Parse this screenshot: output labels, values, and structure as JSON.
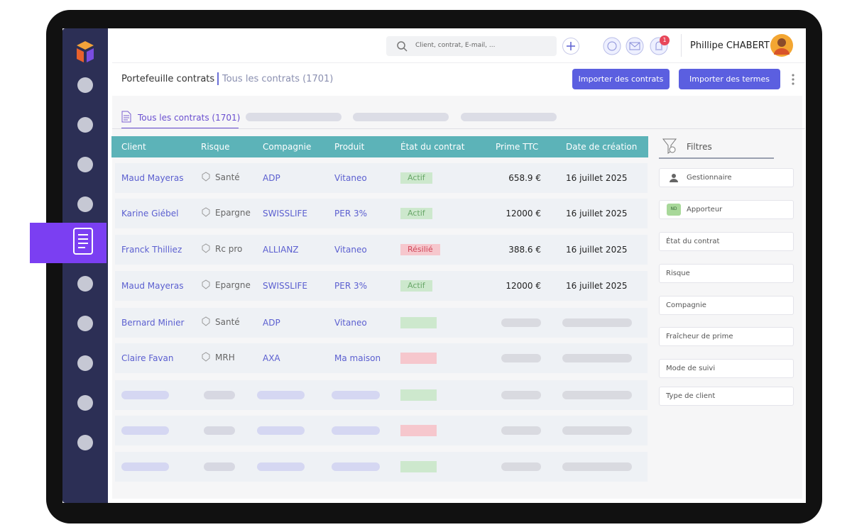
{
  "topbar": {
    "search_placeholder": "Client, contrat, E-mail, ...",
    "notification_count": 1,
    "user_name": "Phillipe CHABERT"
  },
  "breadcrumb": {
    "section": "Portefeuille contrats",
    "current": "Tous les contrats (1701)"
  },
  "actions": [
    "Importer des contrats",
    "Importer des termes"
  ],
  "tabs": [
    "Tous les contrats (1701)"
  ],
  "table": {
    "columns": [
      "Client",
      "Risque",
      "Compagnie",
      "Produit",
      "État du contrat",
      "Prime TTC",
      "Date de création"
    ],
    "rows": [
      [
        "Maud Mayeras",
        "Santé",
        "ADP",
        "Vitaneo",
        "Actif",
        "658.9 €",
        "16 juillet 2025"
      ],
      [
        "Karine Giébel",
        "Epargne",
        "SWISSLIFE",
        "PER 3%",
        "Actif",
        "12000 €",
        "16 juillet 2025"
      ],
      [
        "Franck Thilliez",
        "Rc pro",
        "ALLIANZ",
        "Vitaneo",
        "Résilié",
        "388.6 €",
        "16 juillet 2025"
      ],
      [
        "Maud Mayeras",
        "Epargne",
        "SWISSLIFE",
        "PER 3%",
        "Actif",
        "12000 €",
        "16 juillet 2025"
      ],
      [
        "Bernard Minier",
        "Santé",
        "ADP",
        "Vitaneo"
      ],
      [
        "Claire Favan",
        "MRH",
        "AXA",
        "Ma maison"
      ]
    ]
  },
  "filters": {
    "title": "Filtres",
    "apporteur_badge": "ND",
    "items": [
      "Gestionnaire",
      "Apporteur",
      "État du contrat",
      "Risque",
      "Compagnie",
      "Fraîcheur de prime",
      "Mode de suivi",
      "Type de client"
    ]
  }
}
